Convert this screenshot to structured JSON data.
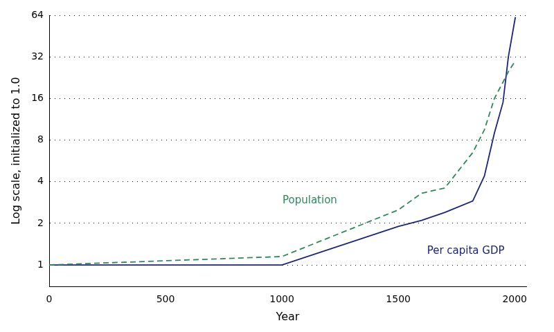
{
  "chart_data": {
    "type": "line",
    "x_label": "Year",
    "y_label": "Log scale, initialized to 1.0",
    "x": [
      0,
      1000,
      1500,
      1600,
      1700,
      1820,
      1870,
      1913,
      1950,
      1973,
      2003
    ],
    "series": [
      {
        "name": "Population",
        "color": "#2a8a5a",
        "line_style": "dashed",
        "values": [
          1,
          1.15,
          2.5,
          3.3,
          3.6,
          6.5,
          9.5,
          16,
          21,
          25,
          30
        ]
      },
      {
        "name": "Per capita GDP",
        "color": "#1a237e",
        "line_style": "solid",
        "values": [
          1,
          1,
          1.9,
          2.1,
          2.4,
          2.9,
          4.4,
          9,
          15,
          32,
          62
        ]
      }
    ],
    "annotations": [
      {
        "text": "Population",
        "x": 1120,
        "y": 2.9,
        "color": "#2a8a5a"
      },
      {
        "text": "Per capita GDP",
        "x": 1790,
        "y": 1.26,
        "color": "#1a237e"
      }
    ],
    "log": "y",
    "grid": true,
    "xlim": [
      0,
      2050
    ],
    "xticks": [
      0,
      500,
      1000,
      1500,
      2000
    ],
    "ylim": [
      0.7,
      64
    ],
    "yticks": [
      1,
      2,
      4,
      8,
      16,
      32,
      64
    ]
  }
}
